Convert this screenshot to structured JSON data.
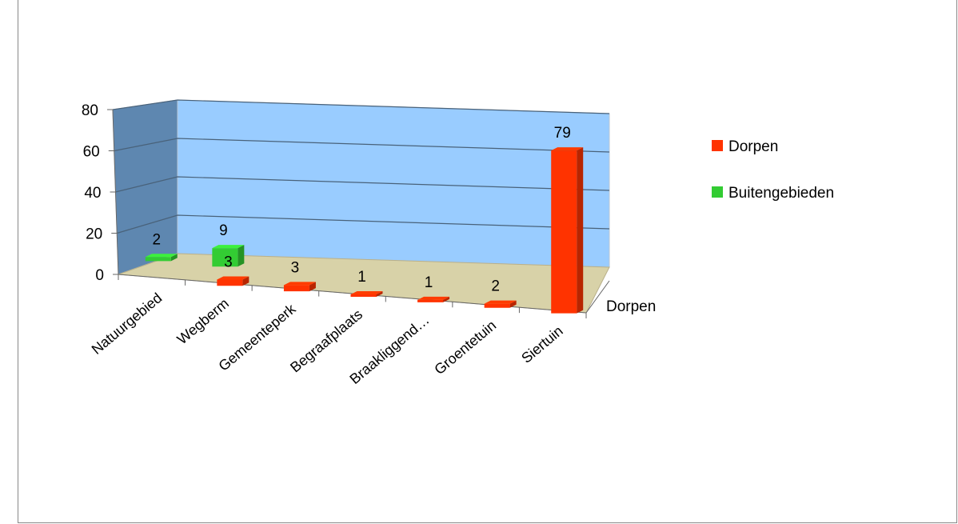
{
  "chart_data": {
    "type": "bar",
    "categories": [
      "Natuurgebied",
      "Wegberm",
      "Gemeenteperk",
      "Begraafplaats",
      "Braakliggend…",
      "Groentetuin",
      "Siertuin"
    ],
    "series": [
      {
        "name": "Dorpen",
        "values": [
          null,
          3,
          3,
          1,
          1,
          2,
          79
        ],
        "color": "#ff3300"
      },
      {
        "name": "Buitengebieden",
        "values": [
          2,
          9,
          null,
          null,
          null,
          null,
          null
        ],
        "color": "#33cc33"
      }
    ],
    "ylim": [
      0,
      80
    ],
    "y_ticks": [
      "0",
      "20",
      "40",
      "60",
      "80"
    ],
    "depth_axis_labels": [
      "Dorpen"
    ],
    "legend_position": "right",
    "grid": true,
    "style": "3d"
  }
}
